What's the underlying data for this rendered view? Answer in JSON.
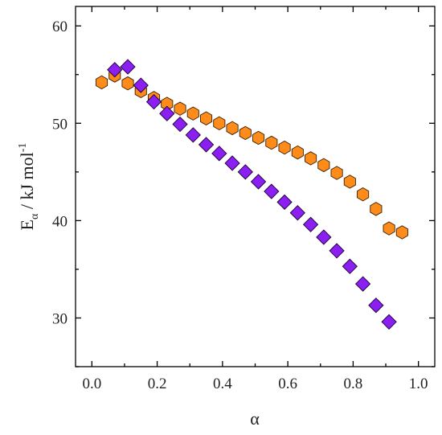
{
  "chart_data": {
    "type": "scatter",
    "xlabel": "α",
    "ylabel": {
      "main": "E",
      "subscript": "α",
      "rest": " / kJ mol",
      "superscript": "-1"
    },
    "xlim": [
      -0.05,
      1.05
    ],
    "ylim": [
      25,
      62
    ],
    "xticks": [
      0.0,
      0.2,
      0.4,
      0.6,
      0.8,
      1.0
    ],
    "xtick_labels": [
      "0.0",
      "0.2",
      "0.4",
      "0.6",
      "0.8",
      "1.0"
    ],
    "yticks": [
      30,
      40,
      50,
      60
    ],
    "ytick_labels": [
      "30",
      "40",
      "50",
      "60"
    ],
    "grid": false,
    "series": [
      {
        "marker": "hexagon",
        "color": "#ff8c1a",
        "x": [
          0.03,
          0.07,
          0.11,
          0.15,
          0.19,
          0.23,
          0.27,
          0.31,
          0.35,
          0.39,
          0.43,
          0.47,
          0.51,
          0.55,
          0.59,
          0.63,
          0.67,
          0.71,
          0.75,
          0.79,
          0.83,
          0.87,
          0.91,
          0.95
        ],
        "y": [
          54.2,
          54.9,
          54.1,
          53.3,
          52.6,
          52.0,
          51.5,
          51.0,
          50.5,
          50.0,
          49.5,
          49.0,
          48.5,
          48.0,
          47.5,
          47.0,
          46.4,
          45.7,
          44.9,
          44.0,
          42.7,
          41.2,
          39.2,
          38.8
        ]
      },
      {
        "marker": "diamond",
        "color": "#8b1ef0",
        "x": [
          0.07,
          0.11,
          0.15,
          0.19,
          0.23,
          0.27,
          0.31,
          0.35,
          0.39,
          0.43,
          0.47,
          0.51,
          0.55,
          0.59,
          0.63,
          0.67,
          0.71,
          0.75,
          0.79,
          0.83,
          0.87,
          0.91
        ],
        "y": [
          55.5,
          55.8,
          53.9,
          52.2,
          51.0,
          49.9,
          48.8,
          47.8,
          46.9,
          45.9,
          45.0,
          44.0,
          43.0,
          41.9,
          40.8,
          39.6,
          38.3,
          36.9,
          35.3,
          33.5,
          31.3,
          29.6
        ]
      }
    ]
  }
}
